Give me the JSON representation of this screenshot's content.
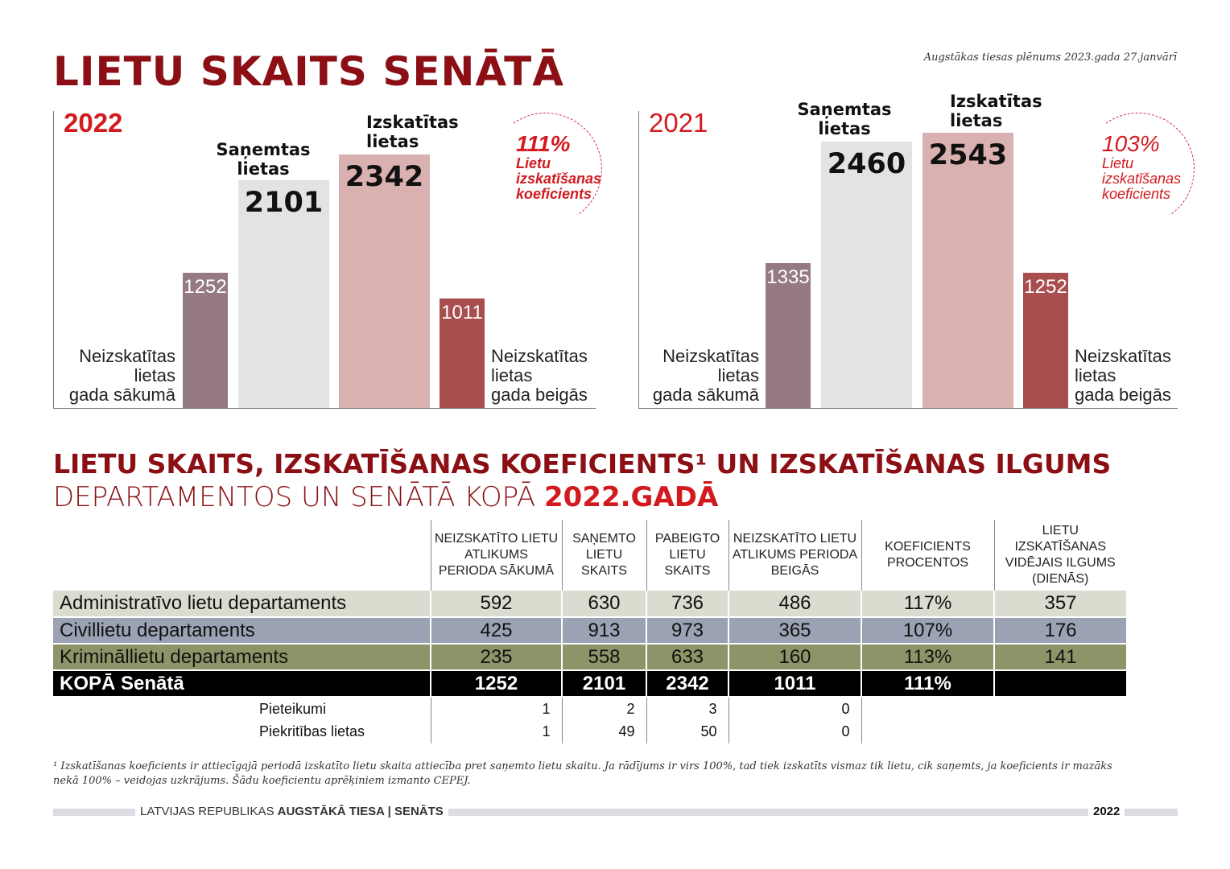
{
  "title": "LIETU SKAITS SENĀTĀ",
  "note": "Augstākas tiesas plēnums 2023.gada 27.janvārī",
  "chart_data": [
    {
      "type": "bar",
      "title": "2022",
      "categories": [
        "Neizskatītas lietas gada sākumā",
        "Saņemtas lietas",
        "Izskatītas lietas",
        "Neizskatītas lietas gada beigās"
      ],
      "values": [
        1252,
        2101,
        2342,
        1011
      ],
      "labels": {
        "start": "Neizskatītas lietas gada sākumā",
        "received": "Saņemtas lietas",
        "reviewed": "Izskatītas lietas",
        "end": "Neizskatītas lietas gada beigās"
      },
      "coef_pct": "111%",
      "coef_label": "Lietu izskatīšanas koeficients",
      "colors": [
        "#957a84",
        "#e2e3e5",
        "#d9b1b0",
        "#a84e4e"
      ]
    },
    {
      "type": "bar",
      "title": "2021",
      "categories": [
        "Neizskatītas lietas gada sākumā",
        "Saņemtas lietas",
        "Izskatītas lietas",
        "Neizskatītas lietas gada beigās"
      ],
      "values": [
        1335,
        2460,
        2543,
        1252
      ],
      "coef_pct": "103%",
      "coef_label": "Lietu izskatīšanas koeficients",
      "colors": [
        "#957a84",
        "#e2e3e5",
        "#d9b1b0",
        "#a84e4e"
      ]
    }
  ],
  "labels": {
    "start_1": "Neizskatītas",
    "start_2": "lietas",
    "start_3": "gada sākumā",
    "end_1": "Neizskatītas",
    "end_2": "lietas",
    "end_3": "gada beigās",
    "recv_1": "Saņemtas",
    "recv_2": "lietas",
    "rev_1": "Izskatītas",
    "rev_2": "lietas",
    "coef_1": "Lietu",
    "coef_2": "izskatīšanas",
    "coef_3": "koeficients"
  },
  "section": {
    "line1": "LIETU SKAITS, IZSKATĪŠANAS KOEFICIENTS¹ UN IZSKATĪŠANAS ILGUMS",
    "line2": "DEPARTAMENTOS UN SENĀTĀ KOPĀ ",
    "line2_bold": "2022.GADĀ"
  },
  "table": {
    "headers": [
      "",
      "NEIZSKATĪTO LIETU ATLIKUMS PERIODA SĀKUMĀ",
      "SAŅEMTO LIETU SKAITS",
      "PABEIGTO LIETU SKAITS",
      "NEIZSKATĪTO LIETU ATLIKUMS PERIODA BEIGĀS",
      "KOEFICIENTS PROCENTOS",
      "LIETU IZSKATĪŠANAS VIDĒJAIS ILGUMS (DIENĀS)"
    ],
    "rows": [
      [
        "Administratīvo lietu departaments",
        "592",
        "630",
        "736",
        "486",
        "117%",
        "357"
      ],
      [
        "Civillietu departaments",
        "425",
        "913",
        "973",
        "365",
        "107%",
        "176"
      ],
      [
        "Krimināllietu departaments",
        "235",
        "558",
        "633",
        "160",
        "113%",
        "141"
      ],
      [
        "KOPĀ Senātā",
        "1252",
        "2101",
        "2342",
        "1011",
        "111%",
        ""
      ]
    ],
    "sub_rows": [
      [
        "Pieteikumi",
        "1",
        "2",
        "3",
        "0"
      ],
      [
        "Piekritības lietas",
        "1",
        "49",
        "50",
        "0"
      ]
    ]
  },
  "footnote": "¹ Izskatīšanas koeficients ir attiecīgajā periodā izskatīto lietu skaita attiecība pret saņemto lietu skaitu. Ja rādījums ir virs 100%, tad tiek izskatīts vismaz tik lietu, cik saņemts, ja koeficients ir mazāks nekā 100% – veidojas uzkrājums. Šādu koeficientu aprēķiniem izmanto CEPEJ.",
  "footer": {
    "text": "LATVIJAS REPUBLIKAS ",
    "bold": "AUGSTĀKĀ TIESA | SENĀTS",
    "year": "2022"
  }
}
